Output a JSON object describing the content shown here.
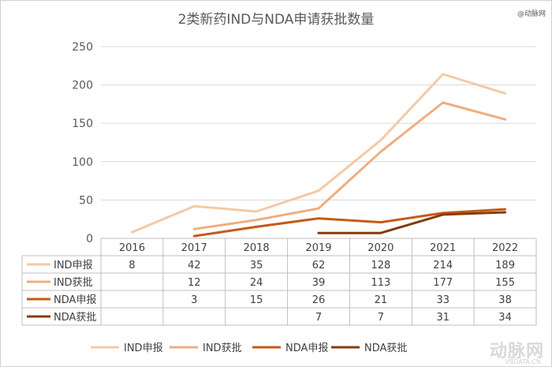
{
  "title": "2类新药IND与NDA申请获批数量",
  "corner_label": "@动脉网",
  "watermark": "动脉网",
  "watermark_sub": "VBDATA.CN",
  "chart_data": {
    "type": "line",
    "title": "2类新药IND与NDA申请获批数量",
    "categories": [
      "2016",
      "2017",
      "2018",
      "2019",
      "2020",
      "2021",
      "2022"
    ],
    "ylim": [
      0,
      250
    ],
    "yticks": [
      0,
      50,
      100,
      150,
      200,
      250
    ],
    "grid": true,
    "legend": "bottom",
    "data_table": true,
    "series": [
      {
        "name": "IND申报",
        "color": "#f4c9a5",
        "values": [
          8,
          42,
          35,
          62,
          128,
          214,
          189
        ]
      },
      {
        "name": "IND获批",
        "color": "#f0ad80",
        "values": [
          null,
          12,
          24,
          39,
          113,
          177,
          155
        ]
      },
      {
        "name": "NDA申报",
        "color": "#c55a19",
        "values": [
          null,
          3,
          15,
          26,
          21,
          33,
          38
        ]
      },
      {
        "name": "NDA获批",
        "color": "#843c0c",
        "values": [
          null,
          null,
          null,
          7,
          7,
          31,
          34
        ]
      }
    ]
  }
}
